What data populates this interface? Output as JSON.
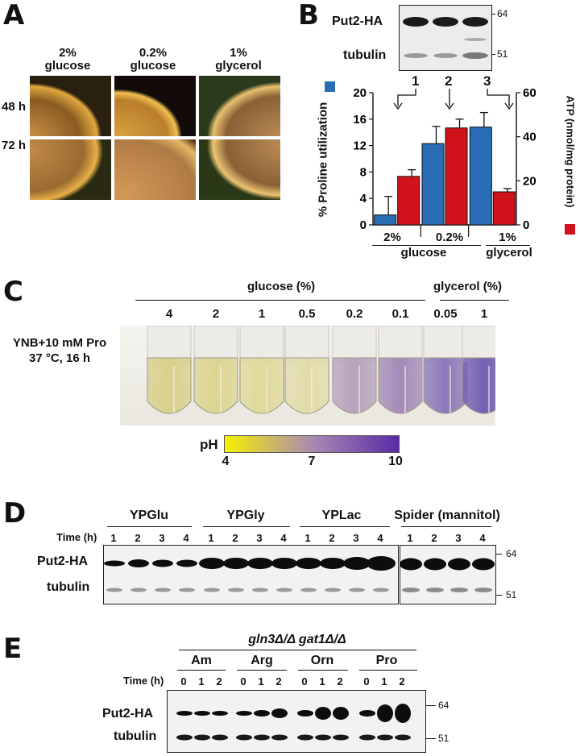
{
  "panelA": {
    "letter": "A",
    "col_line1": [
      "2%",
      "0.2%",
      "1%"
    ],
    "col_line2": [
      "glucose",
      "glucose",
      "glycerol"
    ],
    "rows": [
      "48 h",
      "72 h"
    ]
  },
  "panelB": {
    "letter": "B",
    "blot_labels": [
      "Put2-HA",
      "tubulin"
    ],
    "markers": [
      "64",
      "51"
    ],
    "lanes": [
      "1",
      "2",
      "3"
    ],
    "y_left_label": "% Proline utilization",
    "y_right_label": "ATP (nmol/mg protein)",
    "x_line1": [
      "2%",
      "0.2%",
      "1%"
    ],
    "x_group_glucose": "glucose",
    "x_group_glycerol": "glycerol"
  },
  "chart_data": {
    "type": "bar",
    "categories": [
      "2% glucose",
      "0.2% glucose",
      "1% glycerol"
    ],
    "series": [
      {
        "name": "% Proline utilization",
        "axis": "left",
        "color": "#2a6db5",
        "values": [
          1.5,
          12.3,
          14.8
        ],
        "errors": [
          2.8,
          2.6,
          2.2
        ]
      },
      {
        "name": "ATP (nmol/mg protein)",
        "axis": "right",
        "color": "#d0121b",
        "values": [
          22,
          44,
          15
        ],
        "errors": [
          3,
          4,
          1.5
        ]
      }
    ],
    "ylim_left": [
      0,
      20
    ],
    "yticks_left": [
      "0",
      "4",
      "8",
      "12",
      "16",
      "20"
    ],
    "ylim_right": [
      0,
      60
    ],
    "yticks_right": [
      "0",
      "20",
      "40",
      "60"
    ],
    "ylabel": "% Proline utilization",
    "y2label": "ATP (nmol/mg protein)",
    "grid": false
  },
  "panelC": {
    "letter": "C",
    "glucose_header": "glucose (%)",
    "glycerol_header": "glycerol (%)",
    "glucose_conc": [
      "4",
      "2",
      "1",
      "0.5",
      "0.2",
      "0.1",
      "0.05"
    ],
    "glycerol_conc": [
      "1"
    ],
    "condition_line1": "YNB+10 mM Pro",
    "condition_line2": "37 °C, 16 h",
    "ph_label": "pH",
    "ph_ticks": [
      "4",
      "7",
      "10"
    ],
    "ph_colors": [
      "#f8f000",
      "#a98ab2",
      "#5a2aa6"
    ],
    "tube_colors": [
      "#d8d08a",
      "#dcd592",
      "#e0d99a",
      "#e2dcaa",
      "#b8a2bc",
      "#a48ab8",
      "#8d79b9",
      "#7460b0"
    ]
  },
  "panelD": {
    "letter": "D",
    "media": [
      "YPGlu",
      "YPGly",
      "YPLac",
      "Spider (mannitol)"
    ],
    "time_label": "Time (h)",
    "times": [
      "1",
      "2",
      "3",
      "4"
    ],
    "blot_labels": [
      "Put2-HA",
      "tubulin"
    ],
    "markers": [
      "64",
      "51"
    ]
  },
  "panelE": {
    "letter": "E",
    "genotype": "gln3Δ/Δ gat1Δ/Δ",
    "sources": [
      "Am",
      "Arg",
      "Orn",
      "Pro"
    ],
    "time_label": "Time (h)",
    "times": [
      "0",
      "1",
      "2"
    ],
    "blot_labels": [
      "Put2-HA",
      "tubulin"
    ],
    "markers": [
      "64",
      "51"
    ]
  }
}
